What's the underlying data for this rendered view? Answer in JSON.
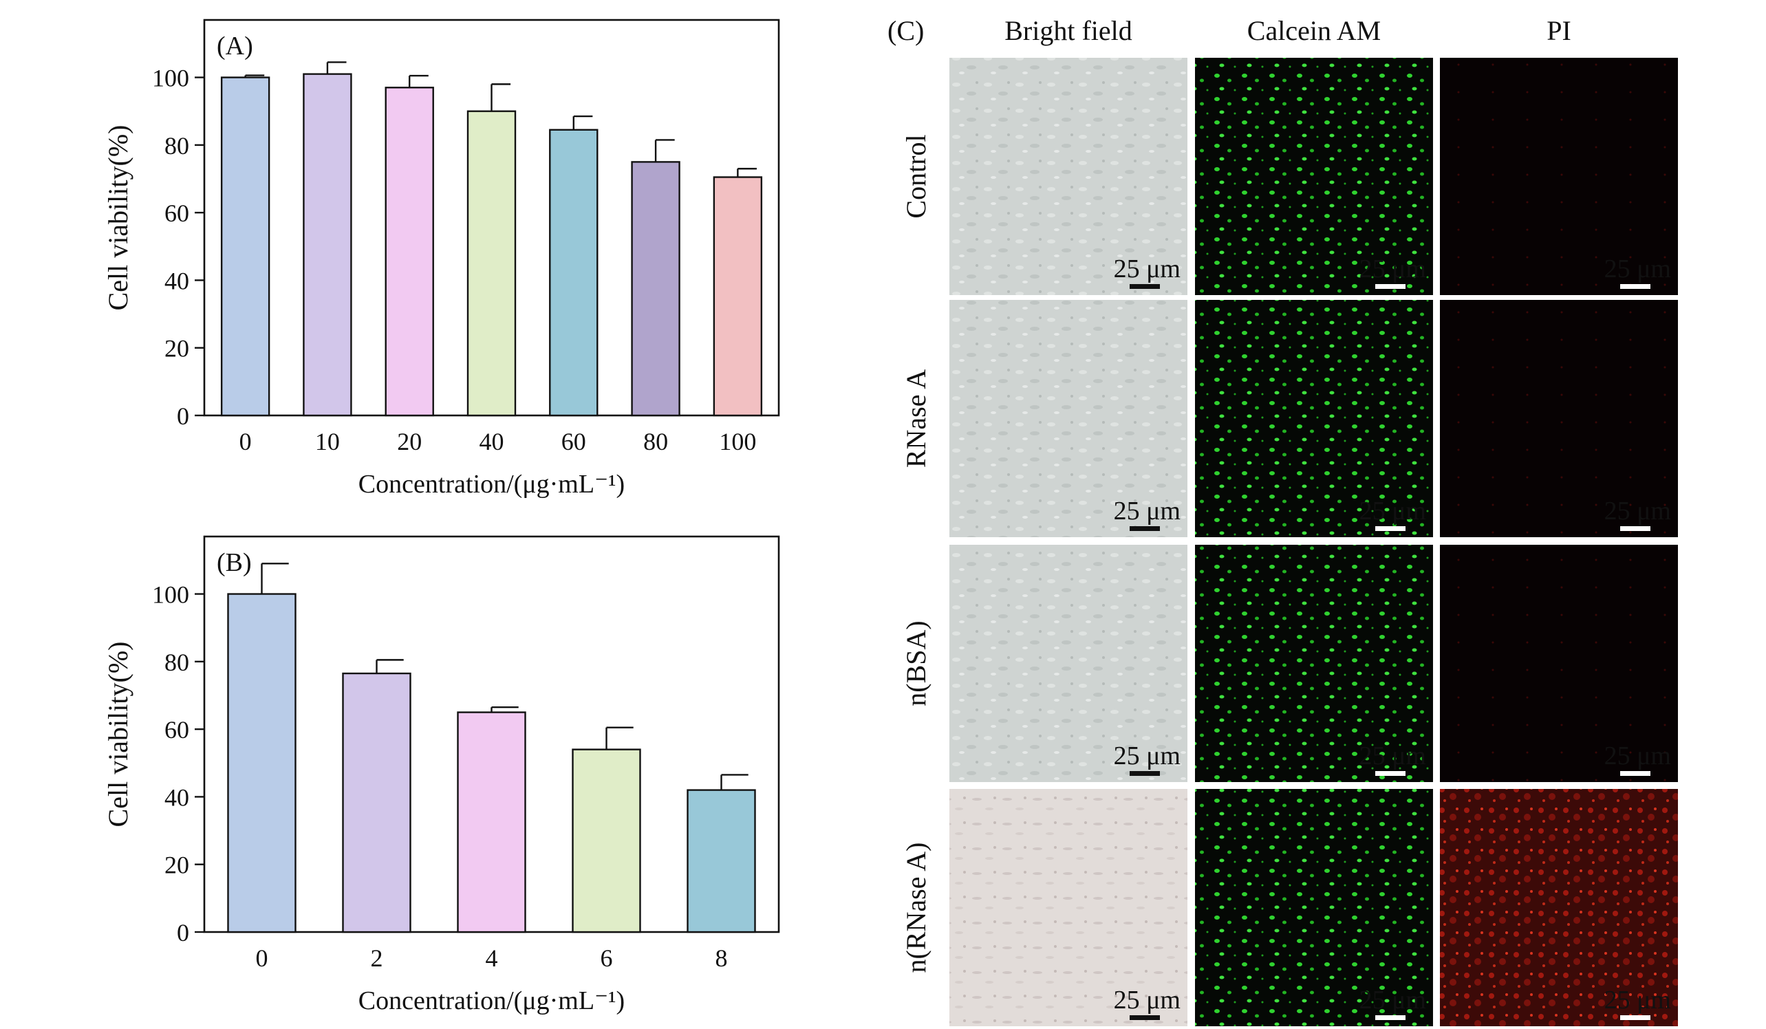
{
  "chart_data": [
    {
      "type": "bar",
      "panel": "(A)",
      "categories": [
        "0",
        "10",
        "20",
        "40",
        "60",
        "80",
        "100"
      ],
      "values": [
        100,
        101,
        97,
        90,
        84.5,
        75,
        70.5
      ],
      "errors": [
        0.6,
        3.5,
        3.5,
        8,
        4,
        6.5,
        2.5
      ],
      "colors": [
        "#b9cce8",
        "#d2c6ea",
        "#f2caf2",
        "#e0edc8",
        "#98c8d8",
        "#b0a4cc",
        "#f2c0c2"
      ],
      "xlabel": "Concentration/(μg·mL⁻¹)",
      "ylabel": "Cell viability(%)",
      "ylim": [
        0,
        117
      ],
      "yticks": [
        "0",
        "20",
        "40",
        "60",
        "80",
        "100"
      ],
      "grid": false
    },
    {
      "type": "bar",
      "panel": "(B)",
      "categories": [
        "0",
        "2",
        "4",
        "6",
        "8"
      ],
      "values": [
        100,
        76.5,
        65,
        54,
        42
      ],
      "errors": [
        9,
        4,
        1.5,
        6.5,
        4.5
      ],
      "colors": [
        "#b9cce8",
        "#d2c6ea",
        "#f2caf2",
        "#e0edc8",
        "#98c8d8"
      ],
      "xlabel": "Concentration/(μg·mL⁻¹)",
      "ylabel": "Cell viability(%)",
      "ylim": [
        0,
        117
      ],
      "yticks": [
        "0",
        "20",
        "40",
        "60",
        "80",
        "100"
      ],
      "grid": false
    }
  ],
  "panelC": {
    "label": "(C)",
    "columns": [
      "Bright field",
      "Calcein AM",
      "PI"
    ],
    "rows": [
      "Control",
      "RNase A",
      "n(BSA)",
      "n(RNase A)"
    ],
    "scale_label": "25 μm",
    "tile_colors": {
      "bright": "#cfd4d2",
      "bright_alt": "#e3dcd9",
      "calcein_bg": "#050805",
      "calcein_fg": "#2fd32f",
      "pi_bg": "#070203",
      "pi_fg": "#c8201a"
    }
  }
}
